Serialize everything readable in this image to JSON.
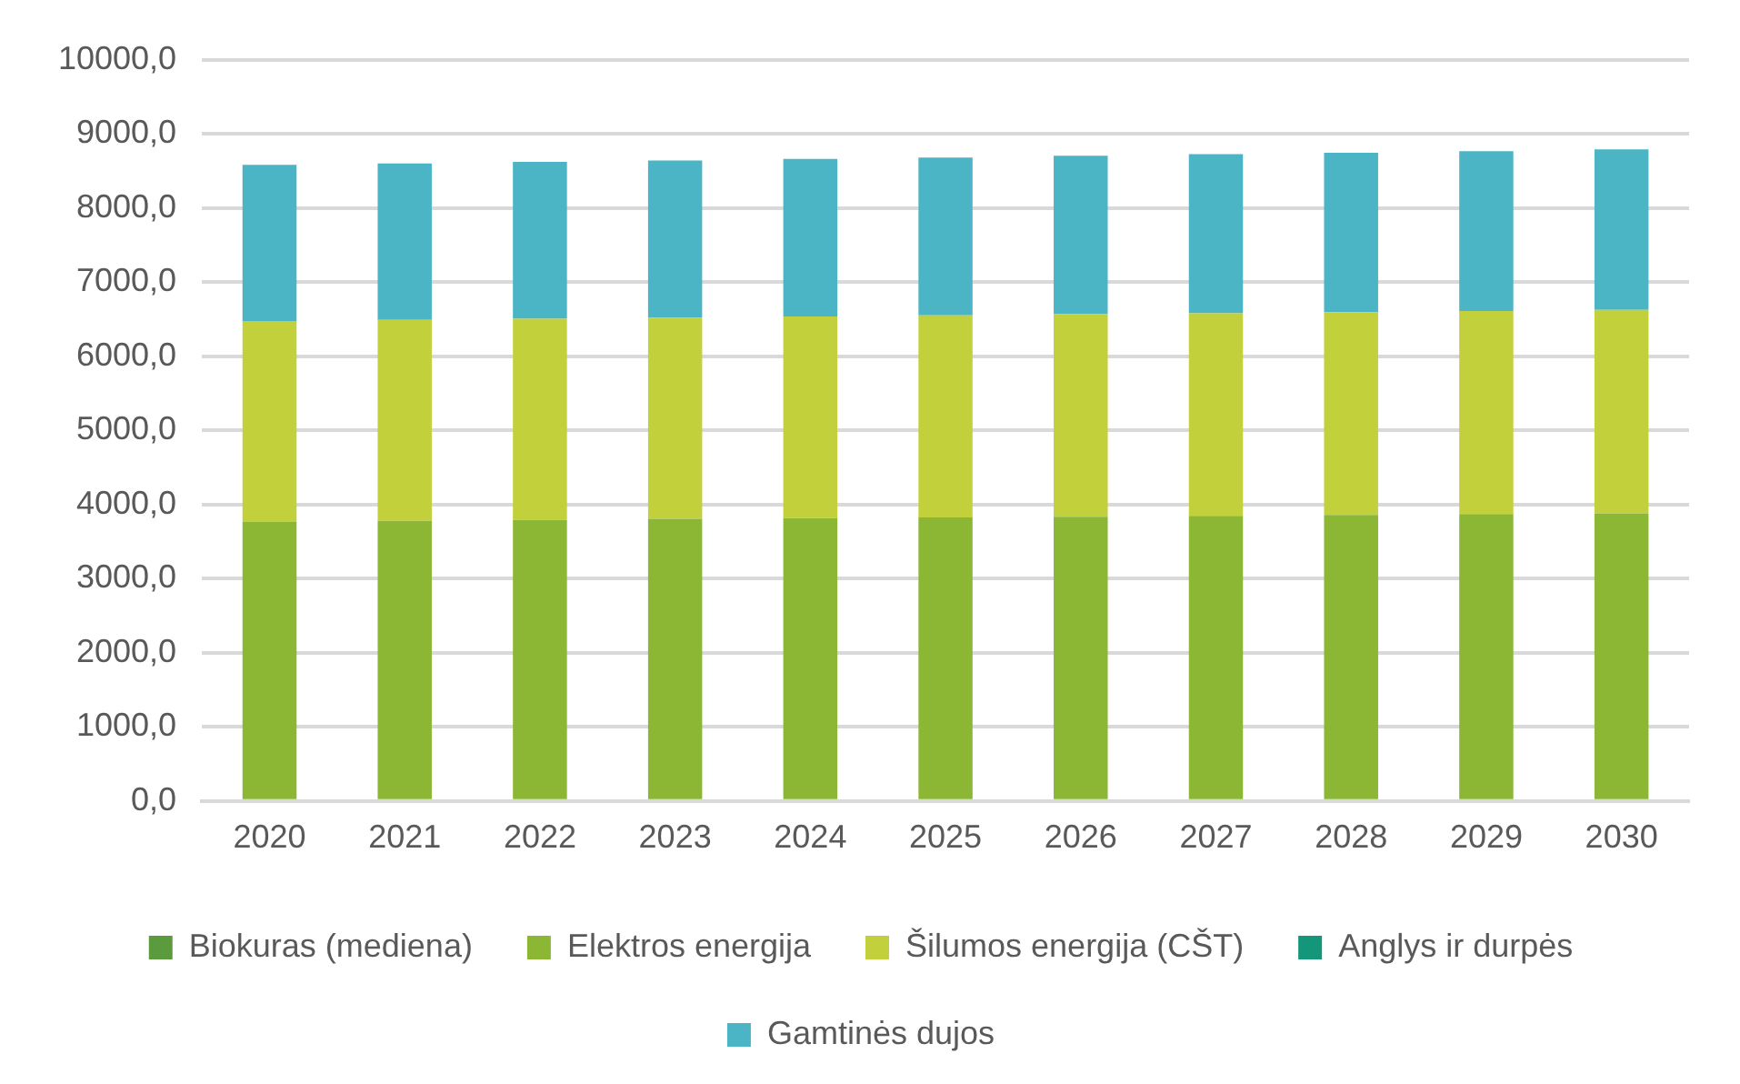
{
  "chart_data": {
    "type": "bar",
    "stacked": true,
    "categories": [
      "2020",
      "2021",
      "2022",
      "2023",
      "2024",
      "2025",
      "2026",
      "2027",
      "2028",
      "2029",
      "2030"
    ],
    "series": [
      {
        "name": "Biokuras (mediena)",
        "color": "#5b9b3e",
        "values": [
          0,
          0,
          0,
          0,
          0,
          0,
          0,
          0,
          0,
          0,
          0
        ]
      },
      {
        "name": "Elektros energija",
        "color": "#8bb735",
        "values": [
          3770,
          3780,
          3790,
          3805,
          3815,
          3825,
          3835,
          3845,
          3860,
          3870,
          3880
        ]
      },
      {
        "name": "Šilumos energija (CŠT)",
        "color": "#c2d03b",
        "values": [
          2705,
          2710,
          2715,
          2715,
          2720,
          2725,
          2730,
          2735,
          2735,
          2740,
          2745
        ]
      },
      {
        "name": "Anglys ir durpės",
        "color": "#13967a",
        "values": [
          0,
          0,
          0,
          0,
          0,
          0,
          0,
          0,
          0,
          0,
          0
        ]
      },
      {
        "name": "Gamtinės dujos",
        "color": "#4bb5c5",
        "values": [
          2105,
          2110,
          2115,
          2120,
          2125,
          2130,
          2140,
          2145,
          2150,
          2155,
          2165
        ]
      }
    ],
    "ylim": [
      0,
      10000
    ],
    "yticks": [
      {
        "value": 0,
        "label": "0,0"
      },
      {
        "value": 1000,
        "label": "1000,0"
      },
      {
        "value": 2000,
        "label": "2000,0"
      },
      {
        "value": 3000,
        "label": "3000,0"
      },
      {
        "value": 4000,
        "label": "4000,0"
      },
      {
        "value": 5000,
        "label": "5000,0"
      },
      {
        "value": 6000,
        "label": "6000,0"
      },
      {
        "value": 7000,
        "label": "7000,0"
      },
      {
        "value": 8000,
        "label": "8000,0"
      },
      {
        "value": 9000,
        "label": "9000,0"
      },
      {
        "value": 10000,
        "label": "10000,0"
      }
    ],
    "grid": "y",
    "legend": "bottom"
  }
}
